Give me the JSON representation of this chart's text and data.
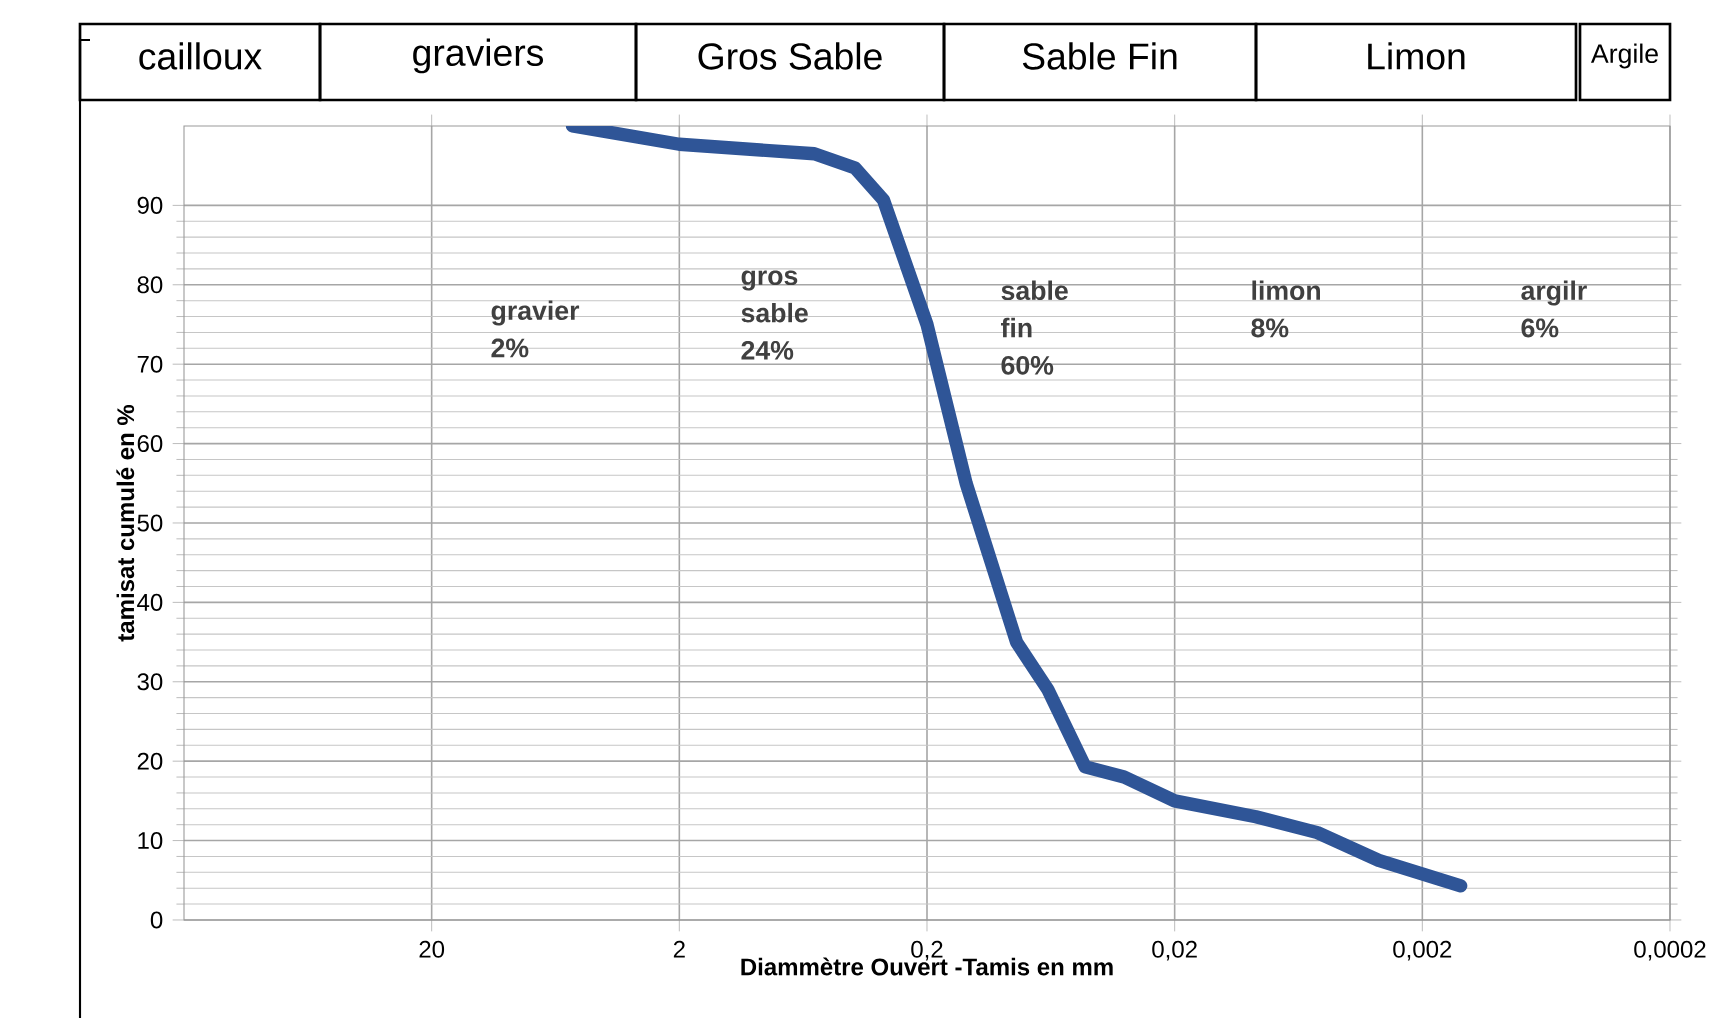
{
  "chart_data": {
    "type": "line",
    "xlabel": "Diammètre Ouvert -Tamis en mm",
    "ylabel": "tamisat cumulé en %",
    "log": "x",
    "xlim": [
      200,
      0.0002
    ],
    "xticks": [
      {
        "value": 20,
        "label": "20"
      },
      {
        "value": 2,
        "label": "2"
      },
      {
        "value": 0.2,
        "label": "0,2"
      },
      {
        "value": 0.02,
        "label": "0,02"
      },
      {
        "value": 0.002,
        "label": "0,002"
      },
      {
        "value": 0.0002,
        "label": "0,0002"
      }
    ],
    "ylim": [
      0,
      100
    ],
    "yticks": [
      0,
      10,
      20,
      30,
      40,
      50,
      60,
      70,
      80,
      90
    ],
    "grid": true,
    "series": [
      {
        "color": "#2f5597",
        "x": [
          5.4,
          2,
          0.57,
          0.39,
          0.3,
          0.2,
          0.139,
          0.087,
          0.065,
          0.046,
          0.032,
          0.02,
          0.0094,
          0.0053,
          0.003,
          0.0014
        ],
        "values": [
          100,
          97.7,
          96.5,
          94.7,
          90.7,
          75,
          55,
          35,
          29,
          19.3,
          18,
          15,
          13,
          11,
          7.5,
          4.3
        ]
      }
    ],
    "annotations": [
      "cailloux",
      "graviers",
      "Gros Sable",
      "Sable Fin",
      "Limon",
      "Argile",
      "gravier 2%",
      "gros sable 24%",
      "sable fin 60%",
      "limon 8%",
      "argilr 6%"
    ]
  }
}
